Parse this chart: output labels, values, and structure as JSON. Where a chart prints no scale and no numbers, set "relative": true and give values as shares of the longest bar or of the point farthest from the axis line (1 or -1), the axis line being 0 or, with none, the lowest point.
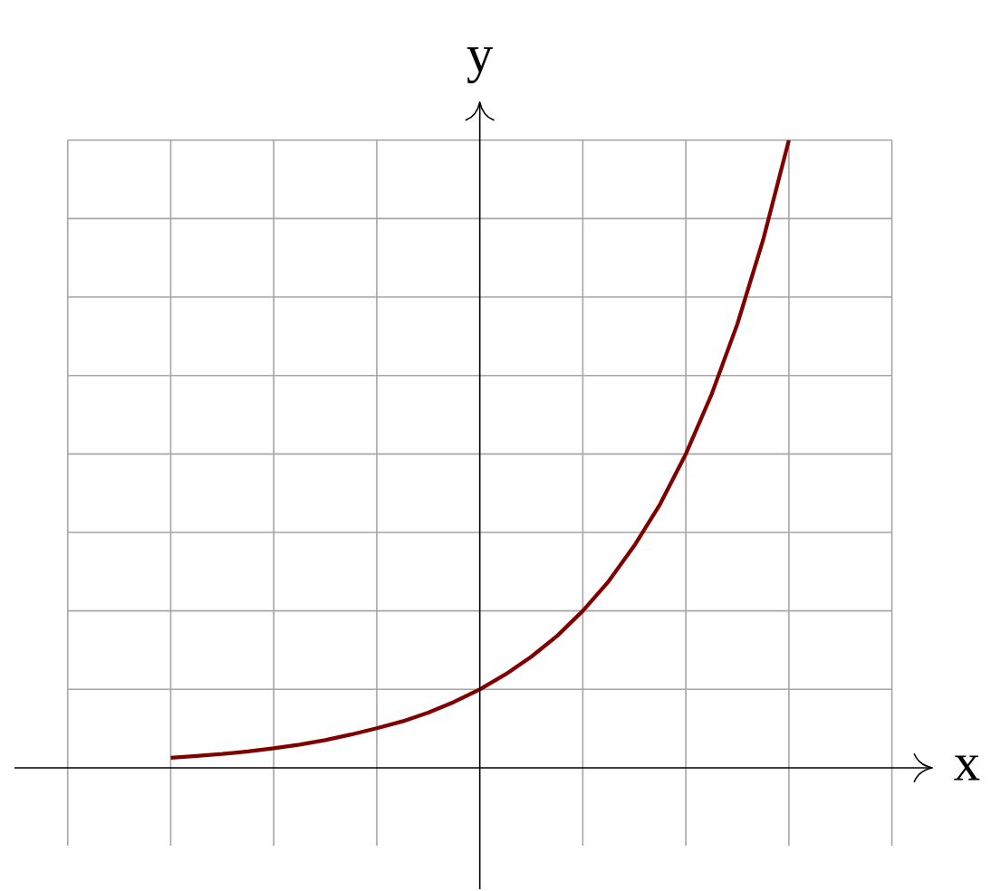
{
  "chart_data": {
    "type": "line",
    "xlabel": "x",
    "ylabel": "y",
    "relative": true,
    "grid": true,
    "tick_labels": false,
    "categories": [
      null,
      null,
      null,
      null,
      null,
      null,
      null,
      null,
      null,
      null,
      null,
      null,
      null,
      null,
      null,
      null,
      null,
      null,
      null,
      null,
      null,
      null,
      null,
      null,
      null
    ],
    "series": [
      {
        "color": "#800000",
        "values": [
          0.016,
          0.019,
          0.022,
          0.026,
          0.031,
          0.037,
          0.044,
          0.053,
          0.063,
          0.074,
          0.088,
          0.105,
          0.125,
          0.149,
          0.177,
          0.21,
          0.25,
          0.297,
          0.354,
          0.42,
          0.5,
          0.595,
          0.707,
          0.841,
          1
        ]
      }
    ]
  }
}
